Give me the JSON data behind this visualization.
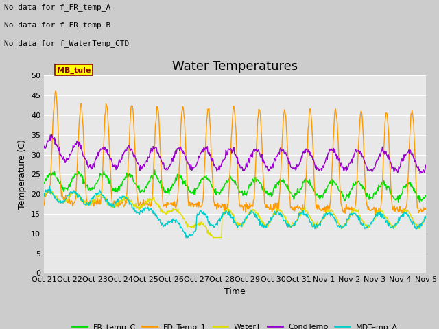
{
  "title": "Water Temperatures",
  "ylabel": "Temperature (C)",
  "xlabel": "Time",
  "bg_color": "#cccccc",
  "plot_bg_color": "#e8e8e8",
  "grid_color": "white",
  "ylim": [
    0,
    50
  ],
  "yticks": [
    0,
    5,
    10,
    15,
    20,
    25,
    30,
    35,
    40,
    45,
    50
  ],
  "xtick_labels": [
    "Oct 21",
    "Oct 22",
    "Oct 23",
    "Oct 24",
    "Oct 25",
    "Oct 26",
    "Oct 27",
    "Oct 28",
    "Oct 29",
    "Oct 30",
    "Oct 31",
    "Nov 1",
    "Nov 2",
    "Nov 3",
    "Nov 4",
    "Nov 5"
  ],
  "legend_labels": [
    "FR_temp_C",
    "FD_Temp_1",
    "WaterT",
    "CondTemp",
    "MDTemp_A"
  ],
  "legend_colors": [
    "#00dd00",
    "#ff9900",
    "#dddd00",
    "#9900cc",
    "#00cccc"
  ],
  "annotations": [
    "No data for f_FR_temp_A",
    "No data for f_FR_temp_B",
    "No data for f_WaterTemp_CTD"
  ],
  "mb_tule_label": "MB_tule",
  "title_fontsize": 13,
  "axis_fontsize": 9,
  "tick_fontsize": 8,
  "annotation_fontsize": 8
}
